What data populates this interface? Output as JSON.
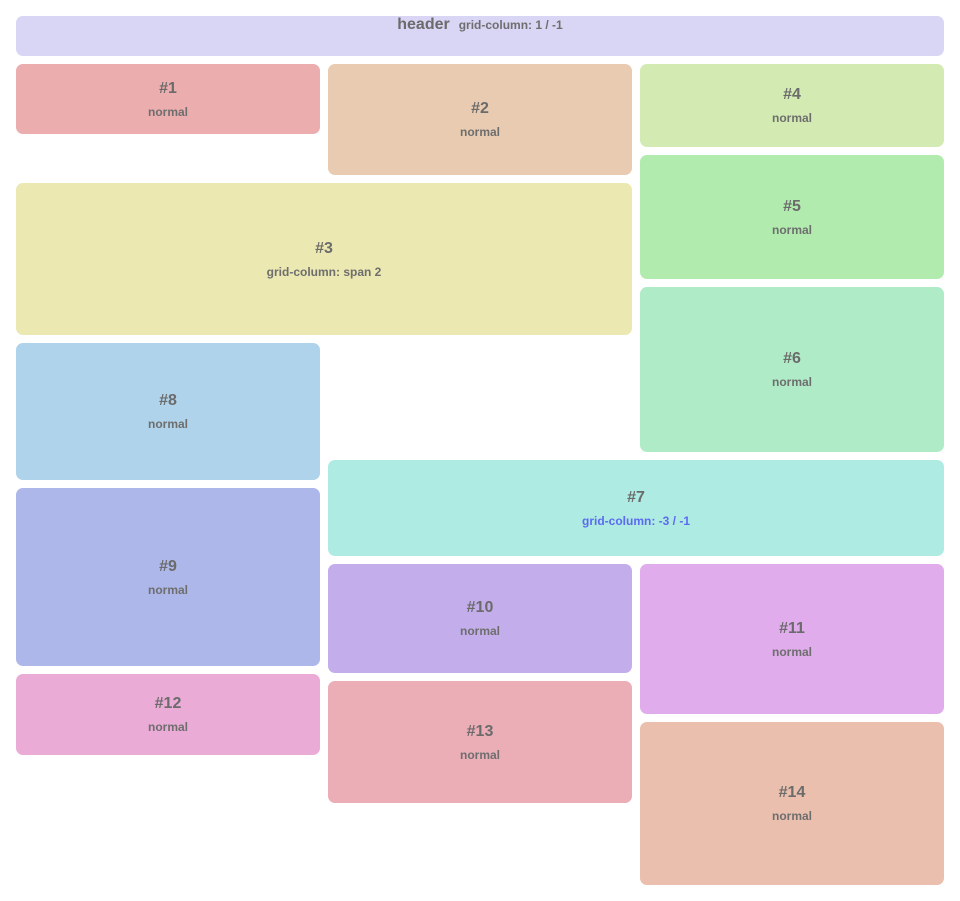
{
  "header": {
    "title": "header",
    "sub": "grid-column: 1 / -1"
  },
  "items": {
    "b1": {
      "label": "#1",
      "sub": "normal"
    },
    "b2": {
      "label": "#2",
      "sub": "normal"
    },
    "b3": {
      "label": "#3",
      "sub": "grid-column: span 2"
    },
    "b4": {
      "label": "#4",
      "sub": "normal"
    },
    "b5": {
      "label": "#5",
      "sub": "normal"
    },
    "b6": {
      "label": "#6",
      "sub": "normal"
    },
    "b7": {
      "label": "#7",
      "sub": "grid-column: -3 / -1"
    },
    "b8": {
      "label": "#8",
      "sub": "normal"
    },
    "b9": {
      "label": "#9",
      "sub": "normal"
    },
    "b10": {
      "label": "#10",
      "sub": "normal"
    },
    "b11": {
      "label": "#11",
      "sub": "normal"
    },
    "b12": {
      "label": "#12",
      "sub": "normal"
    },
    "b13": {
      "label": "#13",
      "sub": "normal"
    },
    "b14": {
      "label": "#14",
      "sub": "normal"
    }
  },
  "colors": {
    "header": "#d9d5f4",
    "b1": "#ecadae",
    "b2": "#e8cbb0",
    "b3": "#ebe8b1",
    "b4": "#d3ebb2",
    "b5": "#b1ebae",
    "b6": "#aeebc6",
    "b7": "#aeebe3",
    "b8": "#aed3ea",
    "b9": "#adb7ea",
    "b10": "#c3aeeb",
    "b11": "#e0aceb",
    "b12": "#eaabd6",
    "b13": "#ebaeb7",
    "b14": "#eabfae",
    "accent_text": "#5b6af0"
  }
}
